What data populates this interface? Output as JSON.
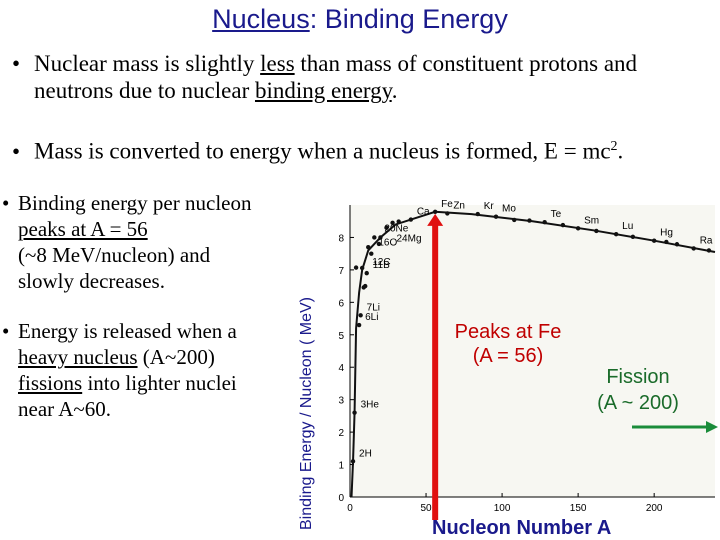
{
  "slide": {
    "title_main": "Nucleus",
    "title_rest": ": Binding Energy",
    "bullets": {
      "b1_a": "Nuclear mass is slightly ",
      "b1_less": "less",
      "b1_b": " than mass of constituent protons and",
      "b1_c": "neutrons due to nuclear ",
      "b1_be": "binding energy",
      "b1_d": ".",
      "b2_a": "Mass is converted to energy when a nucleus is formed, E = mc",
      "b2_sup": "2",
      "b2_b": ".",
      "b3_a": "Binding energy per nucleon",
      "b3_peak": "peaks at A = 56",
      "b3_b": "(~8 MeV/nucleon) and",
      "b3_c": "slowly decreases.",
      "b4_a": "Energy is released when a",
      "b4_heavy": "heavy nucleus",
      "b4_b": " (A~200)",
      "b4_fiss": "fissions",
      "b4_c": " into lighter nuclei",
      "b4_d": "near A~60."
    },
    "bullet_symbol": "•",
    "annotations": {
      "peak_l1": "Peaks at Fe",
      "peak_l2": "(A = 56)",
      "fission_l1": "Fission",
      "fission_l2": "(A ~ 200)"
    },
    "colors": {
      "title": "#1a1a8c",
      "peak_arrow": "#e01010",
      "fission_arrow": "#1a8c3a",
      "curve": "#111111"
    }
  },
  "chart_data": {
    "type": "scatter",
    "xlabel": "Nucleon Number A",
    "ylabel": "Binding Energy / Nucleon ( MeV)",
    "xlim": [
      0,
      240
    ],
    "ylim": [
      0,
      9
    ],
    "xticks": [
      "0",
      "50",
      "100",
      "150",
      "200"
    ],
    "yticks": [
      "0",
      "1",
      "2",
      "3",
      "4",
      "5",
      "6",
      "7",
      "8"
    ],
    "points": [
      {
        "label": "2H",
        "x": 2,
        "y": 1.1
      },
      {
        "label": "3He",
        "x": 3,
        "y": 2.6
      },
      {
        "label": "6Li",
        "x": 6,
        "y": 5.3
      },
      {
        "label": "7Li",
        "x": 7,
        "y": 5.6
      },
      {
        "label": "11B",
        "x": 11,
        "y": 6.9
      },
      {
        "label": "20Ne",
        "x": 20,
        "y": 8.0
      },
      {
        "label": "16O",
        "x": 16,
        "y": 8.0
      },
      {
        "label": "12C",
        "x": 12,
        "y": 7.7
      },
      {
        "label": "24Mg",
        "x": 24,
        "y": 8.3
      },
      {
        "label": "Ca",
        "x": 40,
        "y": 8.55
      },
      {
        "label": "Fe",
        "x": 56,
        "y": 8.79
      },
      {
        "label": "Zn",
        "x": 64,
        "y": 8.74
      },
      {
        "label": "Kr",
        "x": 84,
        "y": 8.72
      },
      {
        "label": "Mo",
        "x": 96,
        "y": 8.64
      },
      {
        "label": "Te",
        "x": 128,
        "y": 8.47
      },
      {
        "label": "Sm",
        "x": 150,
        "y": 8.28
      },
      {
        "label": "Lu",
        "x": 175,
        "y": 8.1
      },
      {
        "label": "Hg",
        "x": 200,
        "y": 7.9
      },
      {
        "label": "Ra",
        "x": 226,
        "y": 7.66
      }
    ],
    "extra_points": [
      {
        "x": 4,
        "y": 7.07
      },
      {
        "x": 8,
        "y": 7.06
      },
      {
        "x": 9,
        "y": 6.46
      },
      {
        "x": 10,
        "y": 6.5
      },
      {
        "x": 14,
        "y": 7.5
      },
      {
        "x": 19,
        "y": 7.8
      },
      {
        "x": 28,
        "y": 8.45
      },
      {
        "x": 32,
        "y": 8.49
      },
      {
        "x": 108,
        "y": 8.54
      },
      {
        "x": 118,
        "y": 8.52
      },
      {
        "x": 140,
        "y": 8.38
      },
      {
        "x": 162,
        "y": 8.2
      },
      {
        "x": 186,
        "y": 8.02
      },
      {
        "x": 208,
        "y": 7.86
      },
      {
        "x": 215,
        "y": 7.79
      },
      {
        "x": 236,
        "y": 7.6
      }
    ]
  }
}
